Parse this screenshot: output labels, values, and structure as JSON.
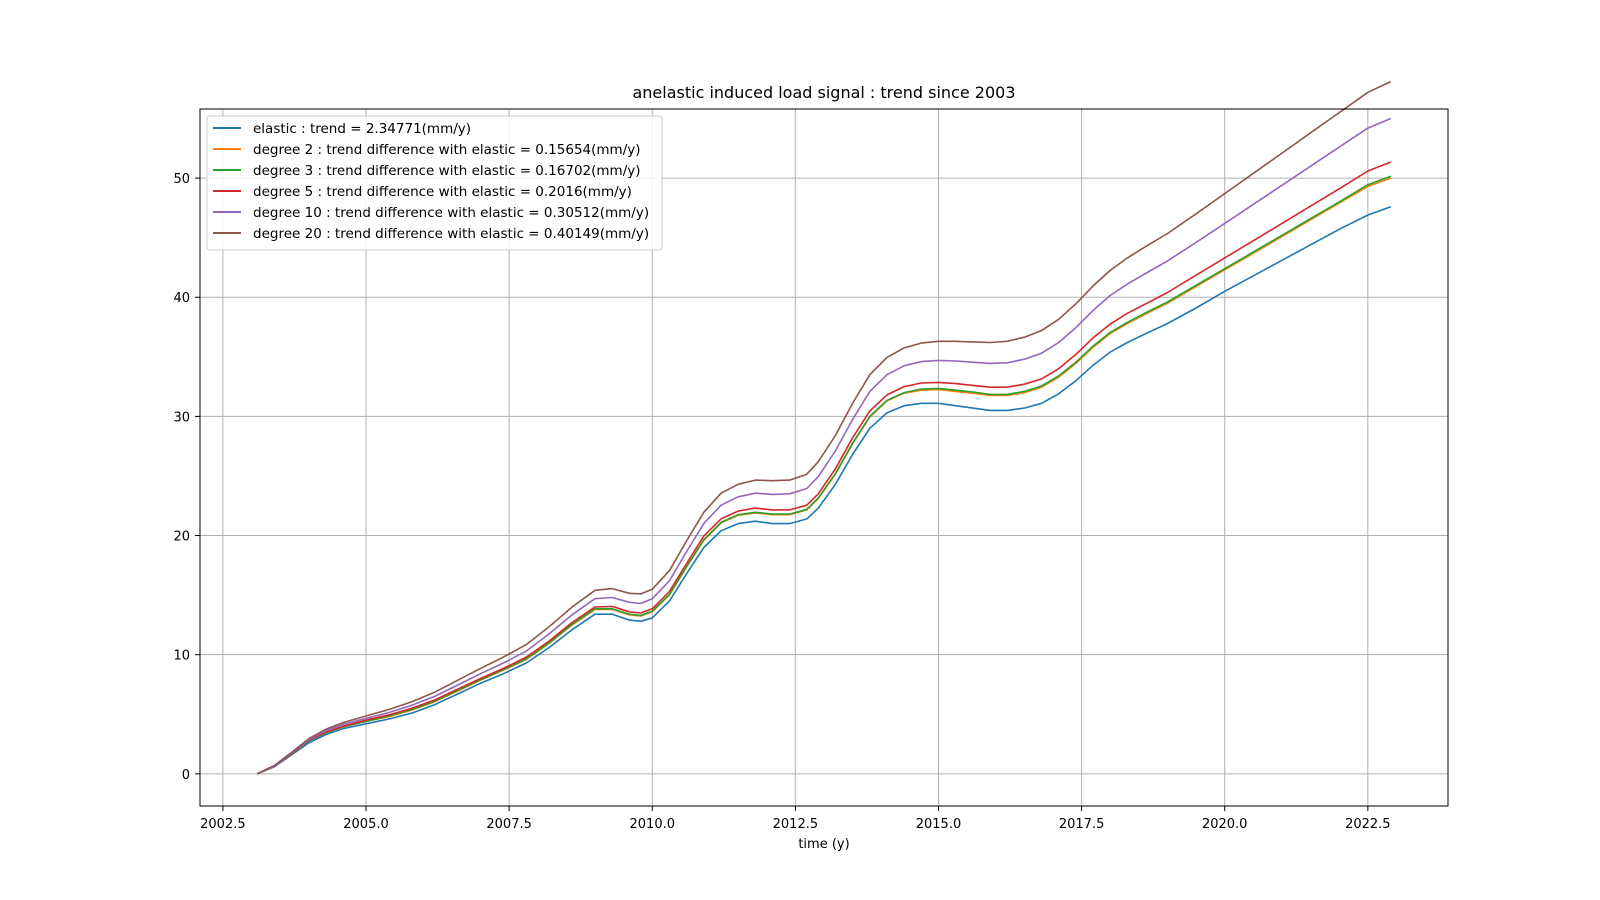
{
  "chart_data": {
    "type": "line",
    "title": "anelastic induced load signal : trend since 2003",
    "xlabel": "time (y)",
    "ylabel": "",
    "xlim": [
      2002.1,
      2023.9
    ],
    "ylim": [
      -2.7,
      55.8
    ],
    "xticks": [
      2002.5,
      2005.0,
      2007.5,
      2010.0,
      2012.5,
      2015.0,
      2017.5,
      2020.0,
      2022.5
    ],
    "xtick_labels": [
      "2002.5",
      "2005.0",
      "2007.5",
      "2010.0",
      "2012.5",
      "2015.0",
      "2017.5",
      "2020.0",
      "2022.5"
    ],
    "yticks": [
      0,
      10,
      20,
      30,
      40,
      50
    ],
    "ytick_labels": [
      "0",
      "10",
      "20",
      "30",
      "40",
      "50"
    ],
    "grid": true,
    "legend_position": "top-left",
    "x": [
      2003.1,
      2003.4,
      2003.7,
      2004.0,
      2004.3,
      2004.6,
      2005.0,
      2005.4,
      2005.8,
      2006.2,
      2006.6,
      2007.0,
      2007.4,
      2007.8,
      2008.2,
      2008.6,
      2009.0,
      2009.3,
      2009.6,
      2009.8,
      2010.0,
      2010.3,
      2010.6,
      2010.9,
      2011.2,
      2011.5,
      2011.8,
      2012.1,
      2012.4,
      2012.7,
      2012.9,
      2013.2,
      2013.5,
      2013.8,
      2014.1,
      2014.4,
      2014.7,
      2015.0,
      2015.3,
      2015.6,
      2015.9,
      2016.2,
      2016.5,
      2016.8,
      2017.1,
      2017.4,
      2017.7,
      2018.0,
      2018.3,
      2018.6,
      2019.0,
      2019.5,
      2020.0,
      2020.5,
      2021.0,
      2021.5,
      2022.0,
      2022.5,
      2022.9
    ],
    "series": [
      {
        "name": "elastic : trend = 2.34771(mm/y)",
        "color": "#1f77b4",
        "values": [
          0.0,
          0.6,
          1.6,
          2.6,
          3.3,
          3.8,
          4.2,
          4.6,
          5.1,
          5.8,
          6.7,
          7.6,
          8.4,
          9.3,
          10.6,
          12.1,
          13.4,
          13.4,
          12.9,
          12.8,
          13.1,
          14.5,
          16.8,
          19.0,
          20.4,
          21.0,
          21.2,
          21.0,
          21.0,
          21.4,
          22.3,
          24.3,
          26.8,
          29.0,
          30.3,
          30.9,
          31.1,
          31.1,
          30.9,
          30.7,
          30.5,
          30.5,
          30.7,
          31.1,
          31.9,
          33.0,
          34.3,
          35.4,
          36.2,
          36.9,
          37.8,
          39.1,
          40.5,
          41.8,
          43.1,
          44.4,
          45.7,
          46.9,
          47.6
        ]
      },
      {
        "name": "degree 2 : trend difference with elastic = 0.15654(mm/y)",
        "color": "#ff7f0e",
        "values": [
          0.0,
          0.65,
          1.7,
          2.75,
          3.45,
          3.95,
          4.4,
          4.8,
          5.35,
          6.05,
          6.95,
          7.85,
          8.7,
          9.6,
          10.95,
          12.5,
          13.8,
          13.8,
          13.35,
          13.25,
          13.6,
          15.0,
          17.35,
          19.6,
          21.05,
          21.7,
          21.9,
          21.75,
          21.75,
          22.15,
          23.1,
          25.15,
          27.7,
          29.95,
          31.3,
          31.95,
          32.2,
          32.25,
          32.1,
          31.95,
          31.75,
          31.75,
          32.0,
          32.45,
          33.3,
          34.45,
          35.8,
          36.95,
          37.8,
          38.55,
          39.5,
          40.9,
          42.3,
          43.7,
          45.1,
          46.5,
          47.9,
          49.3,
          50.0
        ]
      },
      {
        "name": "degree 3 : trend difference with elastic = 0.16702(mm/y)",
        "color": "#2ca02c",
        "values": [
          0.0,
          0.65,
          1.7,
          2.75,
          3.45,
          3.95,
          4.4,
          4.85,
          5.4,
          6.1,
          7.0,
          7.9,
          8.75,
          9.65,
          11.0,
          12.55,
          13.85,
          13.85,
          13.4,
          13.3,
          13.65,
          15.05,
          17.4,
          19.65,
          21.1,
          21.75,
          21.95,
          21.8,
          21.8,
          22.2,
          23.15,
          25.2,
          27.75,
          30.0,
          31.35,
          32.0,
          32.3,
          32.35,
          32.2,
          32.05,
          31.85,
          31.85,
          32.1,
          32.55,
          33.4,
          34.55,
          35.9,
          37.05,
          37.9,
          38.65,
          39.6,
          41.0,
          42.4,
          43.8,
          45.2,
          46.6,
          48.0,
          49.45,
          50.15
        ]
      },
      {
        "name": "degree 5 : trend difference with elastic = 0.2016(mm/y)",
        "color": "#d62728",
        "values": [
          0.0,
          0.65,
          1.7,
          2.8,
          3.5,
          4.0,
          4.5,
          4.95,
          5.5,
          6.2,
          7.1,
          8.0,
          8.85,
          9.8,
          11.15,
          12.7,
          14.0,
          14.05,
          13.6,
          13.5,
          13.85,
          15.3,
          17.65,
          19.95,
          21.4,
          22.05,
          22.3,
          22.15,
          22.15,
          22.55,
          23.5,
          25.6,
          28.2,
          30.45,
          31.8,
          32.5,
          32.8,
          32.85,
          32.75,
          32.6,
          32.45,
          32.45,
          32.7,
          33.15,
          34.0,
          35.2,
          36.6,
          37.75,
          38.65,
          39.4,
          40.4,
          41.85,
          43.3,
          44.75,
          46.2,
          47.65,
          49.1,
          50.6,
          51.35
        ]
      },
      {
        "name": "degree 10 : trend difference with elastic = 0.30512(mm/y)",
        "color": "#9467bd",
        "values": [
          0.0,
          0.65,
          1.75,
          2.85,
          3.6,
          4.15,
          4.65,
          5.15,
          5.75,
          6.5,
          7.45,
          8.4,
          9.3,
          10.3,
          11.75,
          13.35,
          14.7,
          14.8,
          14.4,
          14.3,
          14.7,
          16.2,
          18.65,
          21.0,
          22.55,
          23.25,
          23.55,
          23.45,
          23.5,
          23.95,
          24.95,
          27.1,
          29.75,
          32.1,
          33.5,
          34.25,
          34.6,
          34.7,
          34.65,
          34.55,
          34.45,
          34.5,
          34.8,
          35.3,
          36.2,
          37.45,
          38.9,
          40.15,
          41.1,
          41.95,
          43.05,
          44.6,
          46.2,
          47.8,
          49.4,
          51.0,
          52.6,
          54.2,
          55.0
        ]
      },
      {
        "name": "degree 20 : trend difference with elastic = 0.40149(mm/y)",
        "color": "#8c564b",
        "values": [
          0.0,
          0.7,
          1.8,
          2.95,
          3.75,
          4.3,
          4.85,
          5.4,
          6.05,
          6.85,
          7.85,
          8.85,
          9.8,
          10.85,
          12.35,
          14.0,
          15.4,
          15.55,
          15.15,
          15.1,
          15.5,
          17.05,
          19.55,
          21.95,
          23.55,
          24.3,
          24.65,
          24.6,
          24.65,
          25.15,
          26.2,
          28.4,
          31.1,
          33.5,
          34.95,
          35.75,
          36.15,
          36.3,
          36.3,
          36.25,
          36.2,
          36.3,
          36.65,
          37.2,
          38.15,
          39.45,
          40.95,
          42.25,
          43.3,
          44.2,
          45.35,
          47.0,
          48.7,
          50.4,
          52.1,
          53.8,
          55.5,
          57.2,
          58.1
        ]
      }
    ]
  }
}
